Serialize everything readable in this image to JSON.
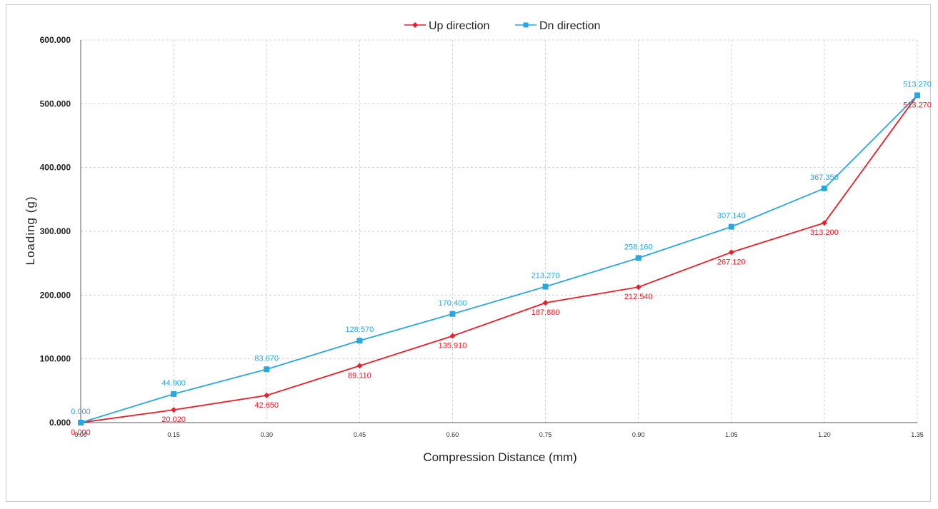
{
  "chart_data": {
    "type": "line",
    "title": "",
    "xlabel": "Compression Distance (mm)",
    "ylabel": "Loading (g)",
    "categories": [
      "0.00",
      "0.15",
      "0.30",
      "0.45",
      "0.60",
      "0.75",
      "0.90",
      "1.05",
      "1.20",
      "1.35"
    ],
    "y_ticks": [
      "0.000",
      "100.000",
      "200.000",
      "300.000",
      "400.000",
      "500.000",
      "600.000"
    ],
    "ylim": [
      0,
      600
    ],
    "grid": "horizontal dashed",
    "legend_position": "top",
    "series": [
      {
        "name": "Up direction",
        "color": "#e8202a",
        "marker": "diamond",
        "values": [
          0.0,
          20.02,
          42.65,
          89.11,
          135.91,
          187.88,
          212.54,
          267.12,
          313.2,
          513.27
        ],
        "labels": [
          "0.000",
          "20.020",
          "42.650",
          "89.110",
          "135.910",
          "187.880",
          "212.540",
          "267.120",
          "313.200",
          "513.270"
        ]
      },
      {
        "name": "Dn direction",
        "color": "#2aa7df",
        "marker": "square",
        "values": [
          0.0,
          44.9,
          83.67,
          128.57,
          170.4,
          213.27,
          258.16,
          307.14,
          367.35,
          513.27
        ],
        "labels": [
          "0.000",
          "44.900",
          "83.670",
          "128.570",
          "170.400",
          "213.270",
          "258.160",
          "307.140",
          "367.350",
          "513.270"
        ]
      }
    ]
  }
}
